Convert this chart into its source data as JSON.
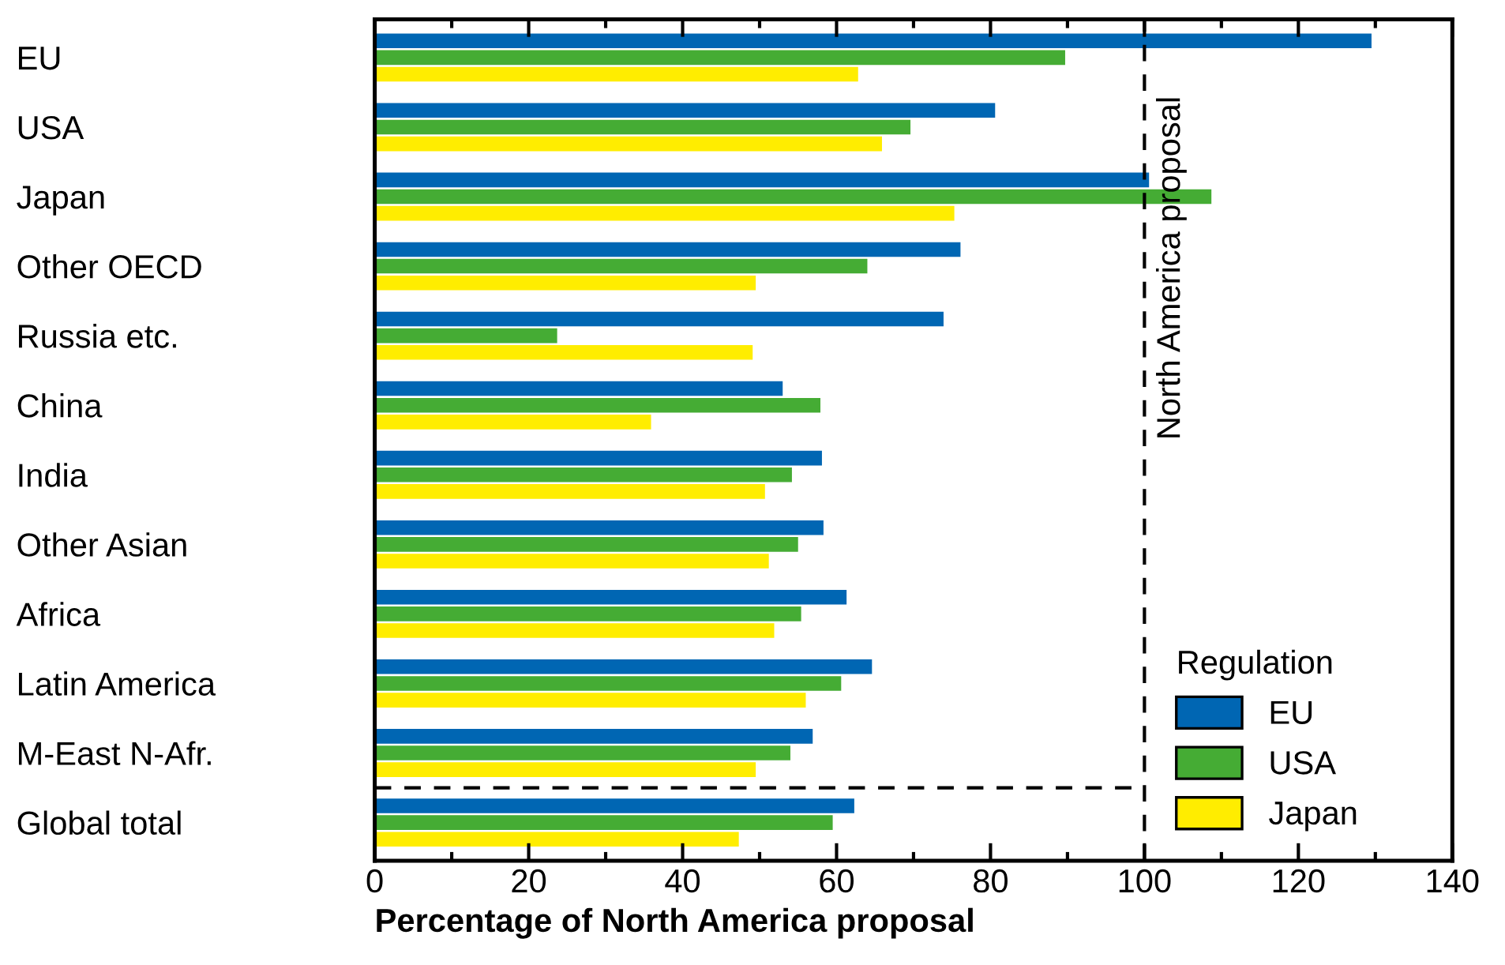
{
  "chart_data": {
    "type": "bar",
    "orientation": "horizontal",
    "xlabel": "Percentage of North America proposal",
    "legend_title": "Regulation",
    "legend": "bottom right",
    "categories": [
      "EU",
      "USA",
      "Japan",
      "Other OECD",
      "Russia etc.",
      "China",
      "India",
      "Other Asian",
      "Africa",
      "Latin America",
      "M-East N-Afr.",
      "Global total"
    ],
    "series": [
      {
        "name": "EU",
        "color": "#0066b3",
        "values": [
          129.5,
          80.6,
          100.6,
          76.1,
          73.9,
          53,
          58.1,
          58.3,
          61.3,
          64.6,
          56.9,
          62.3
        ]
      },
      {
        "name": "USA",
        "color": "#45ac34",
        "values": [
          89.7,
          69.6,
          108.7,
          64,
          23.7,
          57.9,
          54.2,
          55,
          55.4,
          60.6,
          54,
          59.5
        ]
      },
      {
        "name": "Japan",
        "color": "#ffed00",
        "values": [
          62.8,
          65.9,
          75.3,
          49.5,
          49.1,
          35.9,
          50.7,
          51.2,
          51.9,
          56,
          49.5,
          47.3
        ]
      }
    ],
    "xlim": [
      0,
      140
    ],
    "xticks": [
      0,
      {
        "value": 10,
        "label": null
      },
      20,
      {
        "value": 30,
        "label": null
      },
      40,
      {
        "value": 50,
        "label": null
      },
      60,
      {
        "value": 70,
        "label": null
      },
      80,
      {
        "value": 90,
        "label": null
      },
      100,
      {
        "value": 110,
        "label": null
      },
      120,
      {
        "value": 130,
        "label": null
      },
      140
    ],
    "grid": false,
    "ref_lines": [
      {
        "axis": "x",
        "value": 100,
        "label": "North America proposal",
        "color": "#000000",
        "line_style": "dashed"
      }
    ]
  }
}
